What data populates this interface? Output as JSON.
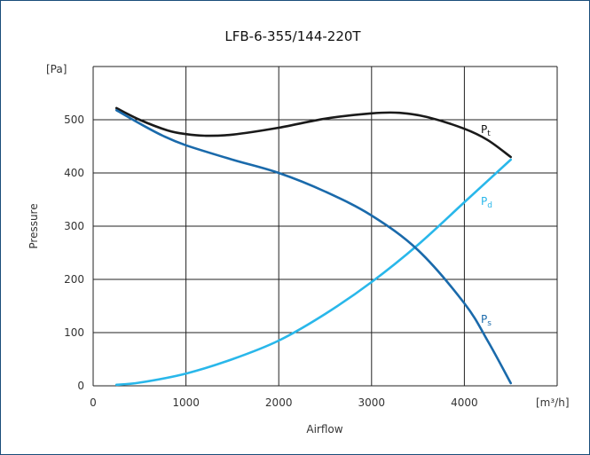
{
  "chart_data": {
    "type": "line",
    "title": "LFB-6-355/144-220T",
    "xlabel": "Airflow",
    "ylabel": "Pressure",
    "x_unit_label": "[m³/h]",
    "y_unit_label": "[Pa]",
    "xlim": [
      0,
      5000
    ],
    "ylim": [
      0,
      600
    ],
    "x_ticks": [
      0,
      1000,
      2000,
      3000,
      4000
    ],
    "y_ticks": [
      0,
      100,
      200,
      300,
      400,
      500
    ],
    "grid": true,
    "series": [
      {
        "name": "Pt",
        "label_main": "P",
        "label_sub": "t",
        "color": "#1a1a1a",
        "x": [
          250,
          500,
          800,
          1000,
          1200,
          1500,
          2000,
          2500,
          3000,
          3300,
          3600,
          4000,
          4250,
          4500
        ],
        "y": [
          522,
          500,
          480,
          473,
          470,
          472,
          485,
          502,
          512,
          513,
          505,
          483,
          462,
          430
        ]
      },
      {
        "name": "Pd",
        "label_main": "P",
        "label_sub": "d",
        "color": "#29b7ea",
        "x": [
          250,
          500,
          1000,
          1500,
          2000,
          2500,
          3000,
          3500,
          4000,
          4500
        ],
        "y": [
          2,
          6,
          23,
          50,
          85,
          135,
          195,
          265,
          345,
          425
        ]
      },
      {
        "name": "Ps",
        "label_main": "P",
        "label_sub": "s",
        "color": "#1a6aab",
        "x": [
          250,
          500,
          750,
          1000,
          1500,
          2000,
          2500,
          3000,
          3500,
          4000,
          4250,
          4500
        ],
        "y": [
          518,
          493,
          470,
          452,
          425,
          400,
          365,
          320,
          255,
          155,
          85,
          5
        ]
      }
    ]
  }
}
